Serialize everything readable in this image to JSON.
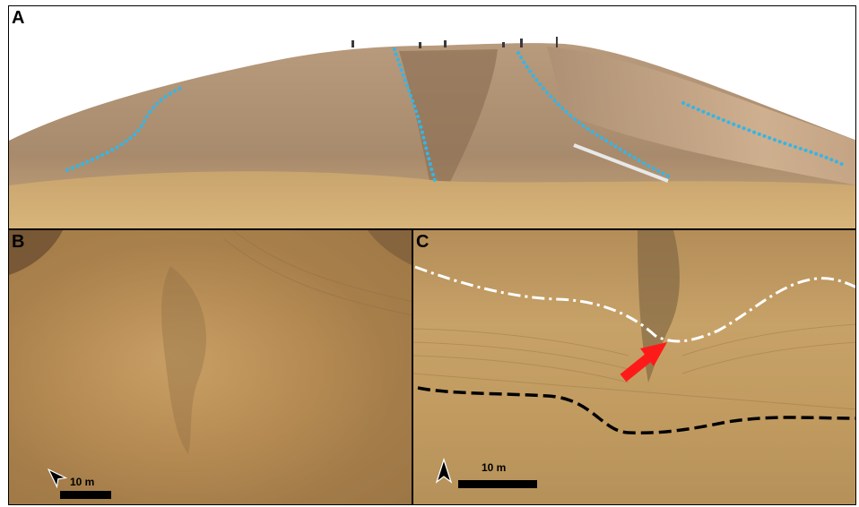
{
  "panels": {
    "a": {
      "letter": "A"
    },
    "b": {
      "letter": "B",
      "scale_label": "10 m"
    },
    "c": {
      "letter": "C",
      "scale_label": "10 m"
    }
  },
  "colors": {
    "sky": "#ffffff",
    "hill": "#b59679",
    "hill_light": "#d2b28a",
    "ground": "#c7a06b",
    "dotted_line": "#36b5e5",
    "dash_dot_line": "#ffffff",
    "dashed_line": "#000000",
    "arrow": "#ff1a1a"
  },
  "icons": [
    "north-arrow-icon",
    "north-arrow-icon"
  ]
}
